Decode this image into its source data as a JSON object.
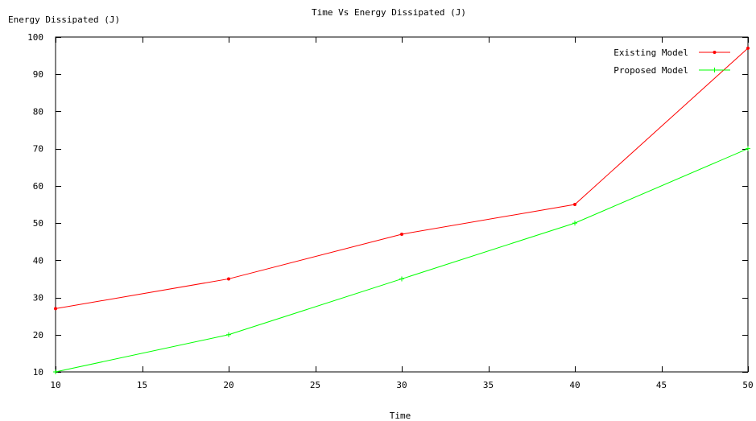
{
  "chart_data": {
    "type": "line",
    "title": "Time Vs Energy Dissipated (J)",
    "xlabel": "Time",
    "ylabel": "Energy Dissipated (J)",
    "x": [
      10,
      20,
      30,
      40,
      50
    ],
    "xlim": [
      10,
      50
    ],
    "ylim": [
      10,
      100
    ],
    "xticks": [
      10,
      15,
      20,
      25,
      30,
      35,
      40,
      45,
      50
    ],
    "yticks": [
      10,
      20,
      30,
      40,
      50,
      60,
      70,
      80,
      90,
      100
    ],
    "grid": false,
    "legend_position": "top-right",
    "series": [
      {
        "name": "Existing Model",
        "color": "#ff0000",
        "marker": "dot",
        "values": [
          27,
          35,
          47,
          55,
          97
        ]
      },
      {
        "name": "Proposed Model",
        "color": "#00ff00",
        "marker": "plus",
        "values": [
          10,
          20,
          35,
          50,
          70
        ]
      }
    ]
  }
}
